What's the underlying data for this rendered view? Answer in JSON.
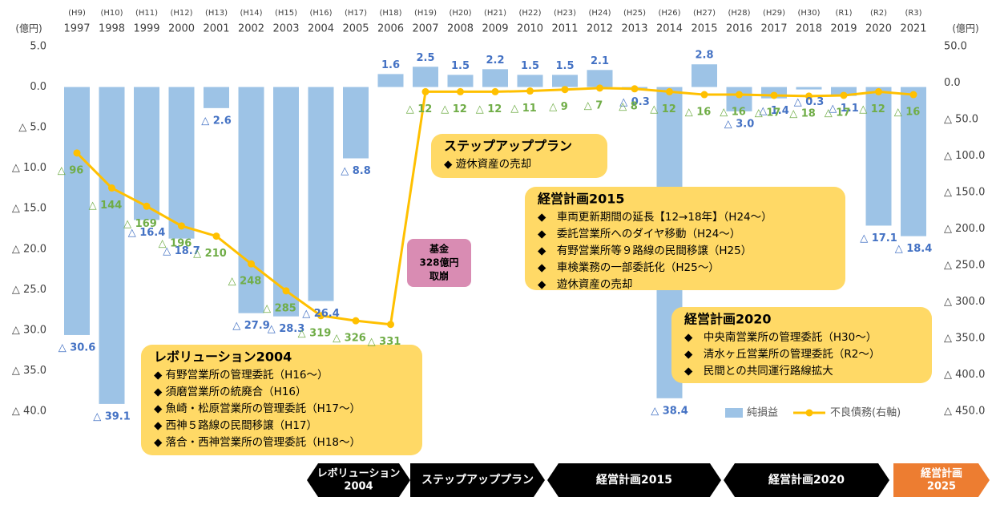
{
  "chart_data": {
    "type": "bar",
    "unit_left": "(億円)",
    "unit_right": "(億円)",
    "categories": [
      "1997",
      "1998",
      "1999",
      "2000",
      "2001",
      "2002",
      "2003",
      "2004",
      "2005",
      "2006",
      "2007",
      "2008",
      "2009",
      "2010",
      "2011",
      "2012",
      "2013",
      "2014",
      "2015",
      "2016",
      "2017",
      "2018",
      "2019",
      "2020",
      "2021"
    ],
    "era_labels": [
      "(H9)",
      "(H10)",
      "(H11)",
      "(H12)",
      "(H13)",
      "(H14)",
      "(H15)",
      "(H16)",
      "(H17)",
      "(H18)",
      "(H19)",
      "(H20)",
      "(H21)",
      "(H22)",
      "(H23)",
      "(H24)",
      "(H25)",
      "(H26)",
      "(H27)",
      "(H28)",
      "(H29)",
      "(H30)",
      "(R1)",
      "(R2)",
      "(R3)"
    ],
    "series": [
      {
        "name": "純損益",
        "type": "bar",
        "color": "#9dc3e6",
        "label_color": "#4472c4",
        "values": [
          -30.6,
          -39.1,
          -16.4,
          -18.7,
          -2.6,
          -27.9,
          -28.3,
          -26.4,
          -8.8,
          1.6,
          2.5,
          1.5,
          2.2,
          1.5,
          1.5,
          2.1,
          -0.3,
          -38.4,
          2.8,
          -3.0,
          -1.4,
          -0.3,
          -1.1,
          -17.1,
          -18.4
        ],
        "value_labels": [
          "△ 30.6",
          "△ 39.1",
          "△ 16.4",
          "△ 18.7",
          "△ 2.6",
          "△ 27.9",
          "△ 28.3",
          "△ 26.4",
          "△ 8.8",
          "1.6",
          "2.5",
          "1.5",
          "2.2",
          "1.5",
          "1.5",
          "2.1",
          "△ 0.3",
          "△ 38.4",
          "2.8",
          "△ 3.0",
          "△ 1.4",
          "△ 0.3",
          "△ 1.1",
          "△ 17.1",
          "△ 18.4"
        ]
      },
      {
        "name": "不良債務(右軸)",
        "type": "line",
        "axis": "y2",
        "color": "#ffc000",
        "label_color": "#70ad47",
        "values": [
          -96,
          -144,
          -169,
          -196,
          -210,
          -248,
          -285,
          -319,
          -326,
          -331,
          -12,
          -12,
          -12,
          -11,
          -9,
          -7,
          -8,
          -12,
          -16,
          -16,
          -17,
          -18,
          -17,
          -12,
          -16
        ],
        "value_labels": [
          "△ 96",
          "△ 144",
          "△ 169",
          "△ 196",
          "△ 210",
          "△ 248",
          "△ 285",
          "△ 319",
          "△ 326",
          "△ 331",
          "△ 12",
          "△ 12",
          "△ 12",
          "△ 11",
          "△ 9",
          "△ 7",
          "△ 8",
          "△ 12",
          "△ 16",
          "△ 16",
          "△ 17",
          "△ 18",
          "△ 17",
          "△ 12",
          "△ 16"
        ]
      }
    ],
    "ylim": [
      -40,
      5
    ],
    "yticks": [
      {
        "value": 5,
        "label": "5.0"
      },
      {
        "value": 0,
        "label": "0.0"
      },
      {
        "value": -5,
        "label": "△ 5.0"
      },
      {
        "value": -10,
        "label": "△ 10.0"
      },
      {
        "value": -15,
        "label": "△ 15.0"
      },
      {
        "value": -20,
        "label": "△ 20.0"
      },
      {
        "value": -25,
        "label": "△ 25.0"
      },
      {
        "value": -30,
        "label": "△ 30.0"
      },
      {
        "value": -35,
        "label": "△ 35.0"
      },
      {
        "value": -40,
        "label": "△ 40.0"
      }
    ],
    "y2lim": [
      -450,
      50
    ],
    "y2ticks": [
      {
        "value": 50,
        "label": "50.0"
      },
      {
        "value": 0,
        "label": "0.0"
      },
      {
        "value": -50,
        "label": "△ 50.0"
      },
      {
        "value": -100,
        "label": "△ 100.0"
      },
      {
        "value": -150,
        "label": "△ 150.0"
      },
      {
        "value": -200,
        "label": "△ 200.0"
      },
      {
        "value": -250,
        "label": "△ 250.0"
      },
      {
        "value": -300,
        "label": "△ 300.0"
      },
      {
        "value": -350,
        "label": "△ 350.0"
      },
      {
        "value": -400,
        "label": "△ 400.0"
      },
      {
        "value": -450,
        "label": "△ 450.0"
      }
    ],
    "grid": false,
    "legend": "lower right"
  },
  "annotations": [
    {
      "title": "ステップアッププラン",
      "items": [
        "◆ 遊休資産の売却"
      ]
    },
    {
      "title": "経営計画2015",
      "items": [
        "◆　車両更新期間の延長【12→18年】（H24～）",
        "◆　委託営業所へのダイヤ移動（H24～）",
        "◆　有野営業所等９路線の民間移譲（H25）",
        "◆　車検業務の一部委託化（H25～）",
        "◆　遊休資産の売却"
      ]
    },
    {
      "title": "経営計画2020",
      "items": [
        "◆　中央南営業所の管理委託（H30～）",
        "◆　清水ヶ丘営業所の管理委託（R2～）",
        "◆　民間との共同運行路線拡大"
      ]
    },
    {
      "title": "レボリューション2004",
      "items": [
        "◆ 有野営業所の管理委託（H16～）",
        "◆ 須磨営業所の統廃合（H16）",
        "◆ 魚崎・松原営業所の管理委託（H17～）",
        "◆ 西神５路線の民間移譲（H17）",
        "◆ 落合・西神営業所の管理委託（H18～）"
      ]
    }
  ],
  "fund_note": [
    "基金",
    "328億円",
    "取崩"
  ],
  "timeline": [
    {
      "lines": [
        "レボリューション",
        "2004"
      ]
    },
    {
      "lines": [
        "ステップアッププラン"
      ]
    },
    {
      "lines": [
        "経営計画2015"
      ]
    },
    {
      "lines": [
        "経営計画2020"
      ]
    },
    {
      "lines": [
        "経営計画",
        "2025"
      ]
    }
  ]
}
